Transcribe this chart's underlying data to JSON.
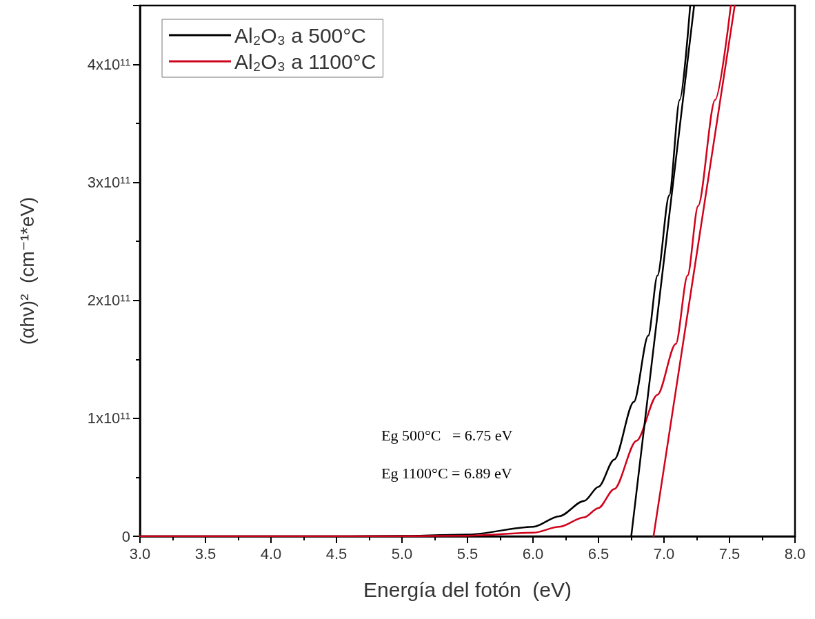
{
  "chart_data": {
    "type": "line",
    "xlabel": "Energía del fotón  (eV)",
    "ylabel": "(αhν)²  (cm⁻¹*eV)",
    "xlim": [
      3,
      8
    ],
    "xticks": [
      {
        "value": 3,
        "label": "3.0"
      },
      {
        "value": 3.5,
        "label": "3.5"
      },
      {
        "value": 4,
        "label": "4.0"
      },
      {
        "value": 4.5,
        "label": "4.5"
      },
      {
        "value": 5,
        "label": "5.0"
      },
      {
        "value": 5.5,
        "label": "5.5"
      },
      {
        "value": 6,
        "label": "6.0"
      },
      {
        "value": 6.5,
        "label": "6.5"
      },
      {
        "value": 7,
        "label": "7.0"
      },
      {
        "value": 7.5,
        "label": "7.5"
      },
      {
        "value": 8,
        "label": "8.0"
      }
    ],
    "ylim": [
      0,
      450000000000
    ],
    "yticks": [
      0,
      {
        "value": 100000000000,
        "label": "1x10¹¹"
      },
      {
        "value": 200000000000,
        "label": "2x10¹¹"
      },
      {
        "value": 300000000000,
        "label": "3x10¹¹"
      },
      {
        "value": 400000000000,
        "label": "4x10¹¹"
      }
    ],
    "grid": false,
    "legend": "top left",
    "marker": "none",
    "line_style": "solid",
    "series": [
      {
        "name": "Al₂O₃ a 500°C",
        "color": "#000000",
        "x": [
          3,
          4,
          4.5,
          5,
          5.5,
          6,
          6.2,
          6.39,
          6.5,
          6.62,
          6.77,
          6.88,
          6.95,
          7.04,
          7.12,
          7.2
        ],
        "values": [
          0,
          0,
          0,
          300000000,
          1500000000,
          8000000000,
          17000000000,
          30000000000,
          42000000000,
          65000000000,
          114000000000,
          170000000000,
          221000000000,
          289000000000,
          370000000000,
          450000000000
        ]
      },
      {
        "name": "Al₂O₃ a 1100°C",
        "color": "#d0021b",
        "x": [
          3,
          4,
          4.5,
          5,
          5.5,
          6,
          6.2,
          6.39,
          6.5,
          6.62,
          6.79,
          6.95,
          7.09,
          7.18,
          7.26,
          7.39,
          7.51
        ],
        "values": [
          0,
          0,
          0,
          0,
          500000000,
          3000000000,
          8000000000,
          16000000000,
          24000000000,
          40000000000,
          81000000000,
          120000000000,
          163000000000,
          221000000000,
          280000000000,
          370000000000,
          450000000000
        ]
      },
      {
        "color": "#000000",
        "x": [
          6.75,
          7.23
        ],
        "values": [
          0,
          450000000000
        ]
      },
      {
        "color": "#d0021b",
        "x": [
          6.92,
          7.54
        ],
        "values": [
          0,
          450000000000
        ]
      }
    ],
    "annotations": [
      "Eg 500°C   = 6.75 eV",
      "Eg 1100°C = 6.89 eV"
    ]
  }
}
